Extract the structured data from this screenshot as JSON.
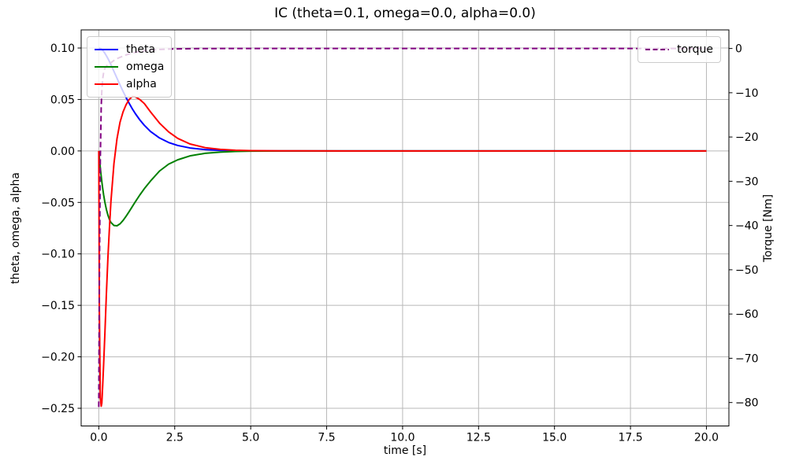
{
  "figure": {
    "title": "IC (theta=0.1, omega=0.0, alpha=0.0)",
    "xlabel": "time [s]",
    "ylabel_left": "theta, omega, alpha",
    "ylabel_right": "Torque [Nm]"
  },
  "chart_data": {
    "type": "line",
    "title": "IC (theta=0.1, omega=0.0, alpha=0.0)",
    "xlabel": "time [s]",
    "ylabel_left": "theta, omega, alpha",
    "ylabel_right": "Torque [Nm]",
    "grid": true,
    "grid_color": "#b8b8b8",
    "spine_color": "#000000",
    "background": "#ffffff",
    "xlim": [
      -0.58,
      20.74
    ],
    "ylim_left": [
      -0.2672,
      0.1176
    ],
    "ylim_right": [
      -85.3,
      4.2
    ],
    "x_ticks": [
      0.0,
      2.5,
      5.0,
      7.5,
      10.0,
      12.5,
      15.0,
      17.5,
      20.0
    ],
    "x_tick_labels": [
      "0.0",
      "2.5",
      "5.0",
      "7.5",
      "10.0",
      "12.5",
      "15.0",
      "17.5",
      "20.0"
    ],
    "left_ticks": [
      0.1,
      0.05,
      0.0,
      -0.05,
      -0.1,
      -0.15,
      -0.2,
      -0.25
    ],
    "left_tick_labels": [
      "0.10",
      "0.05",
      "0.00",
      "−0.05",
      "−0.10",
      "−0.15",
      "−0.20",
      "−0.25"
    ],
    "right_ticks": [
      0,
      -10,
      -20,
      -30,
      -40,
      -50,
      -60,
      -70,
      -80
    ],
    "right_tick_labels": [
      "0",
      "−10",
      "−20",
      "−30",
      "−40",
      "−50",
      "−60",
      "−70",
      "−80"
    ],
    "x": [
      0,
      0.02,
      0.05,
      0.08,
      0.1,
      0.13,
      0.16,
      0.2,
      0.25,
      0.3,
      0.35,
      0.4,
      0.5,
      0.6,
      0.7,
      0.8,
      0.9,
      1.0,
      1.1,
      1.2,
      1.35,
      1.5,
      1.7,
      2.0,
      2.3,
      2.6,
      3.0,
      3.5,
      4.0,
      4.5,
      5.0,
      6.0,
      8.0,
      10.0,
      12.0,
      15.0,
      20.0
    ],
    "series": [
      {
        "name": "theta",
        "color": "#0000ff",
        "style": "solid",
        "axis": "left",
        "values": [
          0.1,
          0.0999,
          0.0996,
          0.0991,
          0.0986,
          0.0977,
          0.0966,
          0.0949,
          0.0925,
          0.0898,
          0.0869,
          0.0838,
          0.0772,
          0.0706,
          0.0641,
          0.0578,
          0.0518,
          0.0463,
          0.0411,
          0.0364,
          0.0302,
          0.0249,
          0.019,
          0.0126,
          0.0082,
          0.0053,
          0.0029,
          0.0013,
          0.0006,
          0.0003,
          0.0001,
          0,
          0,
          0,
          0,
          0,
          0
        ]
      },
      {
        "name": "omega",
        "color": "#008000",
        "style": "solid",
        "axis": "left",
        "values": [
          0,
          -0.0069,
          -0.0163,
          -0.0247,
          -0.0298,
          -0.0367,
          -0.0428,
          -0.0497,
          -0.0568,
          -0.0623,
          -0.0665,
          -0.0695,
          -0.0724,
          -0.0727,
          -0.0708,
          -0.0675,
          -0.0634,
          -0.0589,
          -0.0542,
          -0.0495,
          -0.0428,
          -0.0366,
          -0.0293,
          -0.0195,
          -0.0128,
          -0.0086,
          -0.0048,
          -0.0023,
          -0.0011,
          -0.0005,
          -0.0002,
          0,
          0,
          0,
          0,
          0,
          0
        ]
      },
      {
        "name": "alpha",
        "color": "#ff0000",
        "style": "solid",
        "axis": "left",
        "values": [
          0,
          -0.155,
          -0.24,
          -0.248,
          -0.245,
          -0.227,
          -0.207,
          -0.178,
          -0.139,
          -0.104,
          -0.075,
          -0.049,
          -0.012,
          0.012,
          0.028,
          0.038,
          0.045,
          0.05,
          0.0528,
          0.0525,
          0.05,
          0.046,
          0.038,
          0.027,
          0.0185,
          0.0122,
          0.0068,
          0.0032,
          0.0015,
          0.0007,
          0.0003,
          0.0001,
          0,
          0,
          0,
          0,
          0
        ]
      },
      {
        "name": "torque",
        "color": "#800080",
        "style": "dashed",
        "axis": "right",
        "values": [
          -81,
          -52,
          -25,
          -13,
          -9.5,
          -6.8,
          -5.4,
          -4.5,
          -4.0,
          -3.7,
          -3.4,
          -3.2,
          -2.7,
          -2.3,
          -2.0,
          -1.7,
          -1.45,
          -1.22,
          -1.03,
          -0.86,
          -0.67,
          -0.52,
          -0.37,
          -0.22,
          -0.13,
          -0.08,
          -0.04,
          -0.02,
          -0.01,
          0,
          0,
          0,
          0,
          0,
          0,
          0,
          0
        ]
      }
    ],
    "legend_left": {
      "position": "upper left",
      "entries": [
        "theta",
        "omega",
        "alpha"
      ]
    },
    "legend_right": {
      "position": "upper right",
      "entries": [
        "torque"
      ]
    }
  }
}
